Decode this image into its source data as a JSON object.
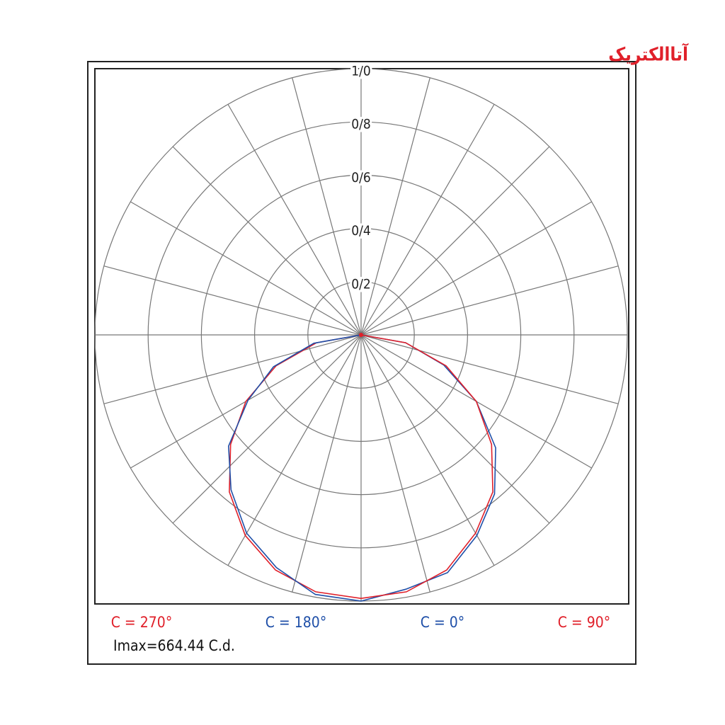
{
  "brand": "آتاالکتریک",
  "chart_data": {
    "type": "polar",
    "x": [
      0,
      10,
      20,
      30,
      40,
      50,
      60,
      70,
      80,
      90
    ],
    "series": [
      {
        "name": "C = 270°",
        "color": "#e0202a",
        "side": "left",
        "values": [
          0.99,
          0.98,
          0.94,
          0.87,
          0.77,
          0.64,
          0.5,
          0.34,
          0.17,
          0
        ]
      },
      {
        "name": "C = 180°",
        "color": "#1f4fa8",
        "side": "left",
        "values": [
          1,
          0.99,
          0.93,
          0.86,
          0.76,
          0.65,
          0.49,
          0.35,
          0.18,
          0
        ]
      },
      {
        "name": "C = 0°",
        "color": "#1f4fa8",
        "side": "right",
        "values": [
          1,
          0.97,
          0.95,
          0.87,
          0.78,
          0.66,
          0.5,
          0.33,
          0.17,
          0
        ]
      },
      {
        "name": "C = 90°",
        "color": "#e0202a",
        "side": "right",
        "values": [
          0.99,
          0.98,
          0.94,
          0.86,
          0.77,
          0.64,
          0.5,
          0.34,
          0.17,
          0
        ]
      }
    ],
    "rlim": [
      0,
      1
    ],
    "rticks": [
      {
        "value": 0.2,
        "label": "0/2"
      },
      {
        "value": 0.4,
        "label": "0/4"
      },
      {
        "value": 0.6,
        "label": "0/6"
      },
      {
        "value": 0.8,
        "label": "0/8"
      },
      {
        "value": 1.0,
        "label": "1/0"
      }
    ],
    "annotation": "Imax=664.44 C.d."
  }
}
